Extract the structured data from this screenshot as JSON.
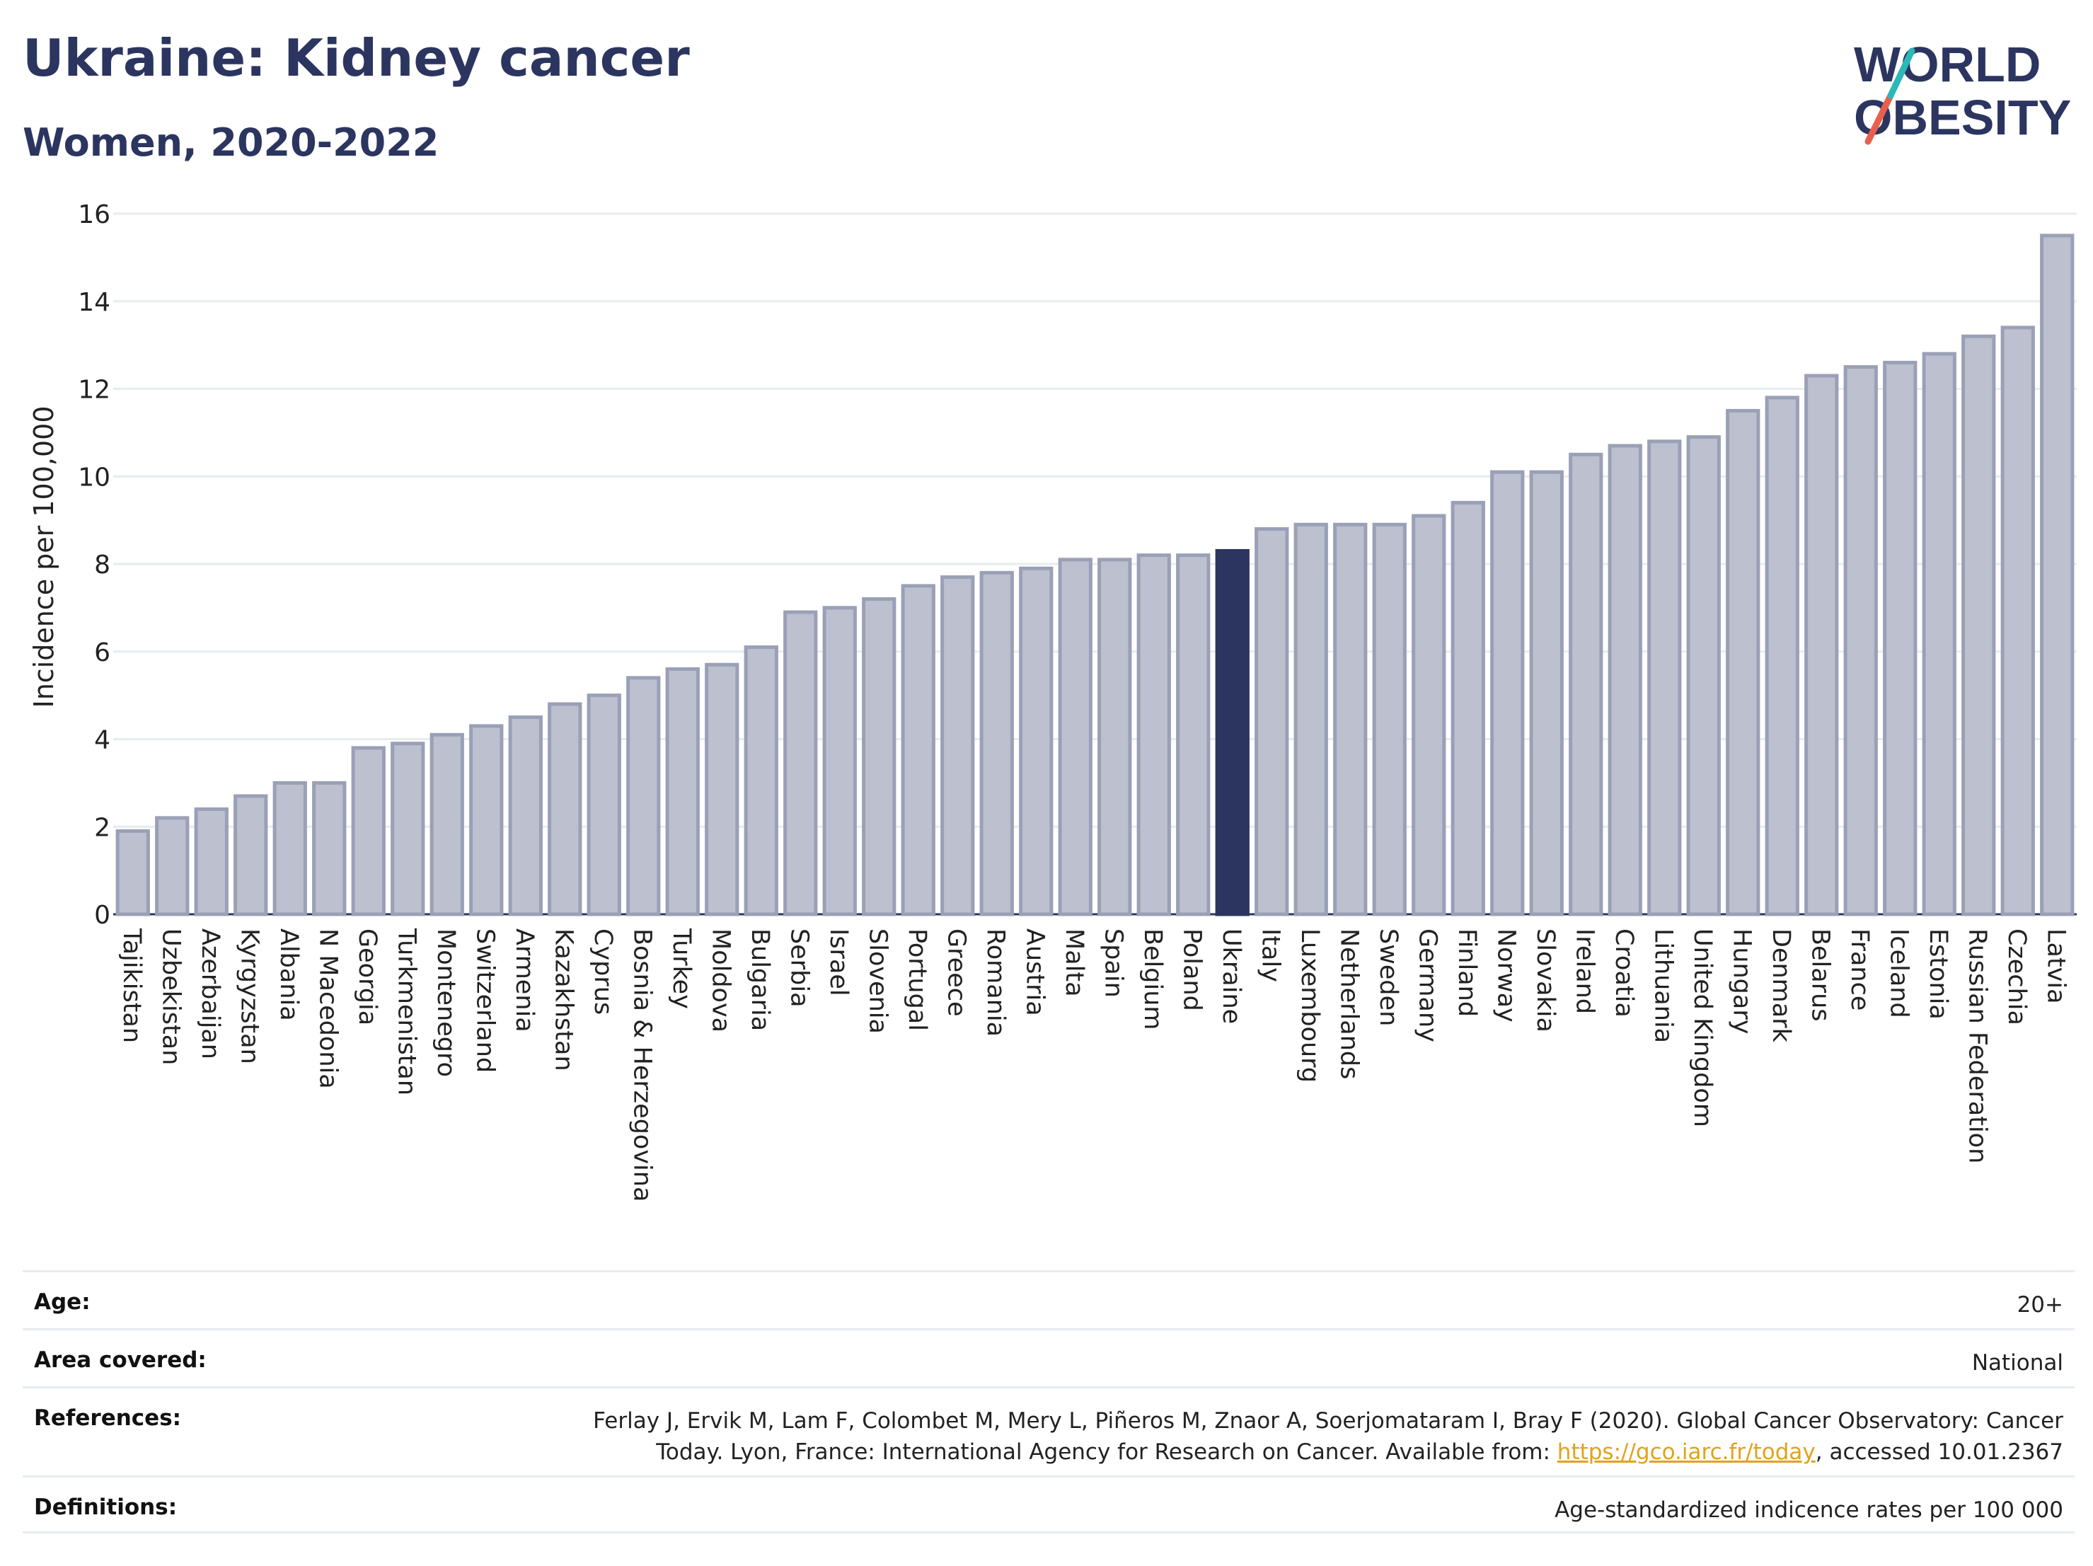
{
  "header": {
    "title": "Ukraine: Kidney cancer",
    "subtitle": "Women, 2020-2022"
  },
  "logo": {
    "line1": "WORLD",
    "line2": "OBESITY",
    "accent_colors": [
      "#2bb8b8",
      "#e8604c"
    ]
  },
  "chart_data": {
    "type": "bar",
    "ylabel": "Incidence per 100,000",
    "xlabel": "",
    "ylim": [
      0,
      16
    ],
    "yticks": [
      0,
      2,
      4,
      6,
      8,
      10,
      12,
      14,
      16
    ],
    "grid": true,
    "highlight": "Ukraine",
    "colors": {
      "bar": "#bcc0cf",
      "bar_border": "#9aa0b6",
      "highlight": "#2b3560"
    },
    "categories": [
      "Tajikistan",
      "Uzbekistan",
      "Azerbaijan",
      "Kyrgyzstan",
      "Albania",
      "N Macedonia",
      "Georgia",
      "Turkmenistan",
      "Montenegro",
      "Switzerland",
      "Armenia",
      "Kazakhstan",
      "Cyprus",
      "Bosnia & Herzegovina",
      "Turkey",
      "Moldova",
      "Bulgaria",
      "Serbia",
      "Israel",
      "Slovenia",
      "Portugal",
      "Greece",
      "Romania",
      "Austria",
      "Malta",
      "Spain",
      "Belgium",
      "Poland",
      "Ukraine",
      "Italy",
      "Luxembourg",
      "Netherlands",
      "Sweden",
      "Germany",
      "Finland",
      "Norway",
      "Slovakia",
      "Ireland",
      "Croatia",
      "Lithuania",
      "United Kingdom",
      "Hungary",
      "Denmark",
      "Belarus",
      "France",
      "Iceland",
      "Estonia",
      "Russian Federation",
      "Czechia",
      "Latvia"
    ],
    "values": [
      1.9,
      2.2,
      2.4,
      2.7,
      3.0,
      3.0,
      3.8,
      3.9,
      4.1,
      4.3,
      4.5,
      4.8,
      5.0,
      5.4,
      5.6,
      5.7,
      6.1,
      6.9,
      7.0,
      7.2,
      7.5,
      7.7,
      7.8,
      7.9,
      8.1,
      8.1,
      8.2,
      8.2,
      8.3,
      8.8,
      8.9,
      8.9,
      8.9,
      9.1,
      9.4,
      10.1,
      10.1,
      10.5,
      10.7,
      10.8,
      10.9,
      11.5,
      11.8,
      12.3,
      12.5,
      12.6,
      12.8,
      13.2,
      13.4,
      15.5
    ]
  },
  "meta": {
    "age_label": "Age:",
    "age_value": "20+",
    "area_label": "Area covered:",
    "area_value": "National",
    "references_label": "References:",
    "references_line1": "Ferlay J, Ervik M, Lam F, Colombet M, Mery L, Piñeros M, Znaor A, Soerjomataram I, Bray F (2020). Global Cancer Observatory: Cancer",
    "references_line2_pre": "Today. Lyon, France: International Agency for Research on Cancer. Available from: ",
    "references_link": "https://gco.iarc.fr/today",
    "references_line2_post": ", accessed 10.01.2367",
    "definitions_label": "Definitions:",
    "definitions_value": "Age-standardized indicence rates per 100 000"
  }
}
